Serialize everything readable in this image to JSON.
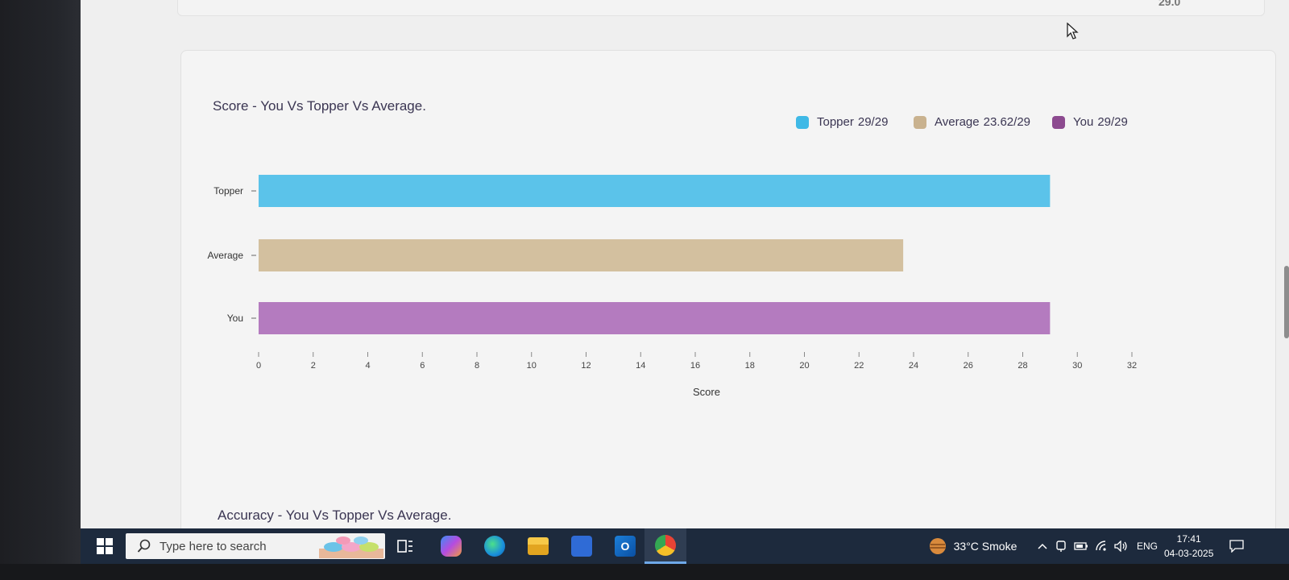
{
  "top_card": {
    "value": "29.0"
  },
  "chart_data": {
    "type": "bar",
    "orientation": "horizontal",
    "title": "Score - You Vs Topper Vs Average.",
    "categories": [
      "Topper",
      "Average",
      "You"
    ],
    "series": [
      {
        "name": "Score",
        "values": [
          29,
          23.62,
          29
        ]
      }
    ],
    "bar_colors": [
      "#5bc3ea",
      "#d3c09f",
      "#b47bbf"
    ],
    "xlabel": "Score",
    "ylabel": "",
    "xlim": [
      0,
      32
    ],
    "xticks": [
      "0",
      "2",
      "4",
      "6",
      "8",
      "10",
      "12",
      "14",
      "16",
      "18",
      "20",
      "22",
      "24",
      "26",
      "28",
      "30",
      "32"
    ],
    "grid": false,
    "legend_position": "top-right",
    "legend": [
      {
        "label": "Topper",
        "value": "29/29",
        "color": "#3fb9e6"
      },
      {
        "label": "Average",
        "value": "23.62/29",
        "color": "#c9b28f"
      },
      {
        "label": "You",
        "value": "29/29",
        "color": "#8c4a8f"
      }
    ]
  },
  "second_chart": {
    "title": "Accuracy - You Vs Topper Vs Average."
  },
  "taskbar": {
    "search_placeholder": "Type here to search",
    "weather": "33°C  Smoke",
    "language": "ENG",
    "time": "17:41",
    "date": "04-03-2025",
    "accent": "#1d2a3d"
  }
}
